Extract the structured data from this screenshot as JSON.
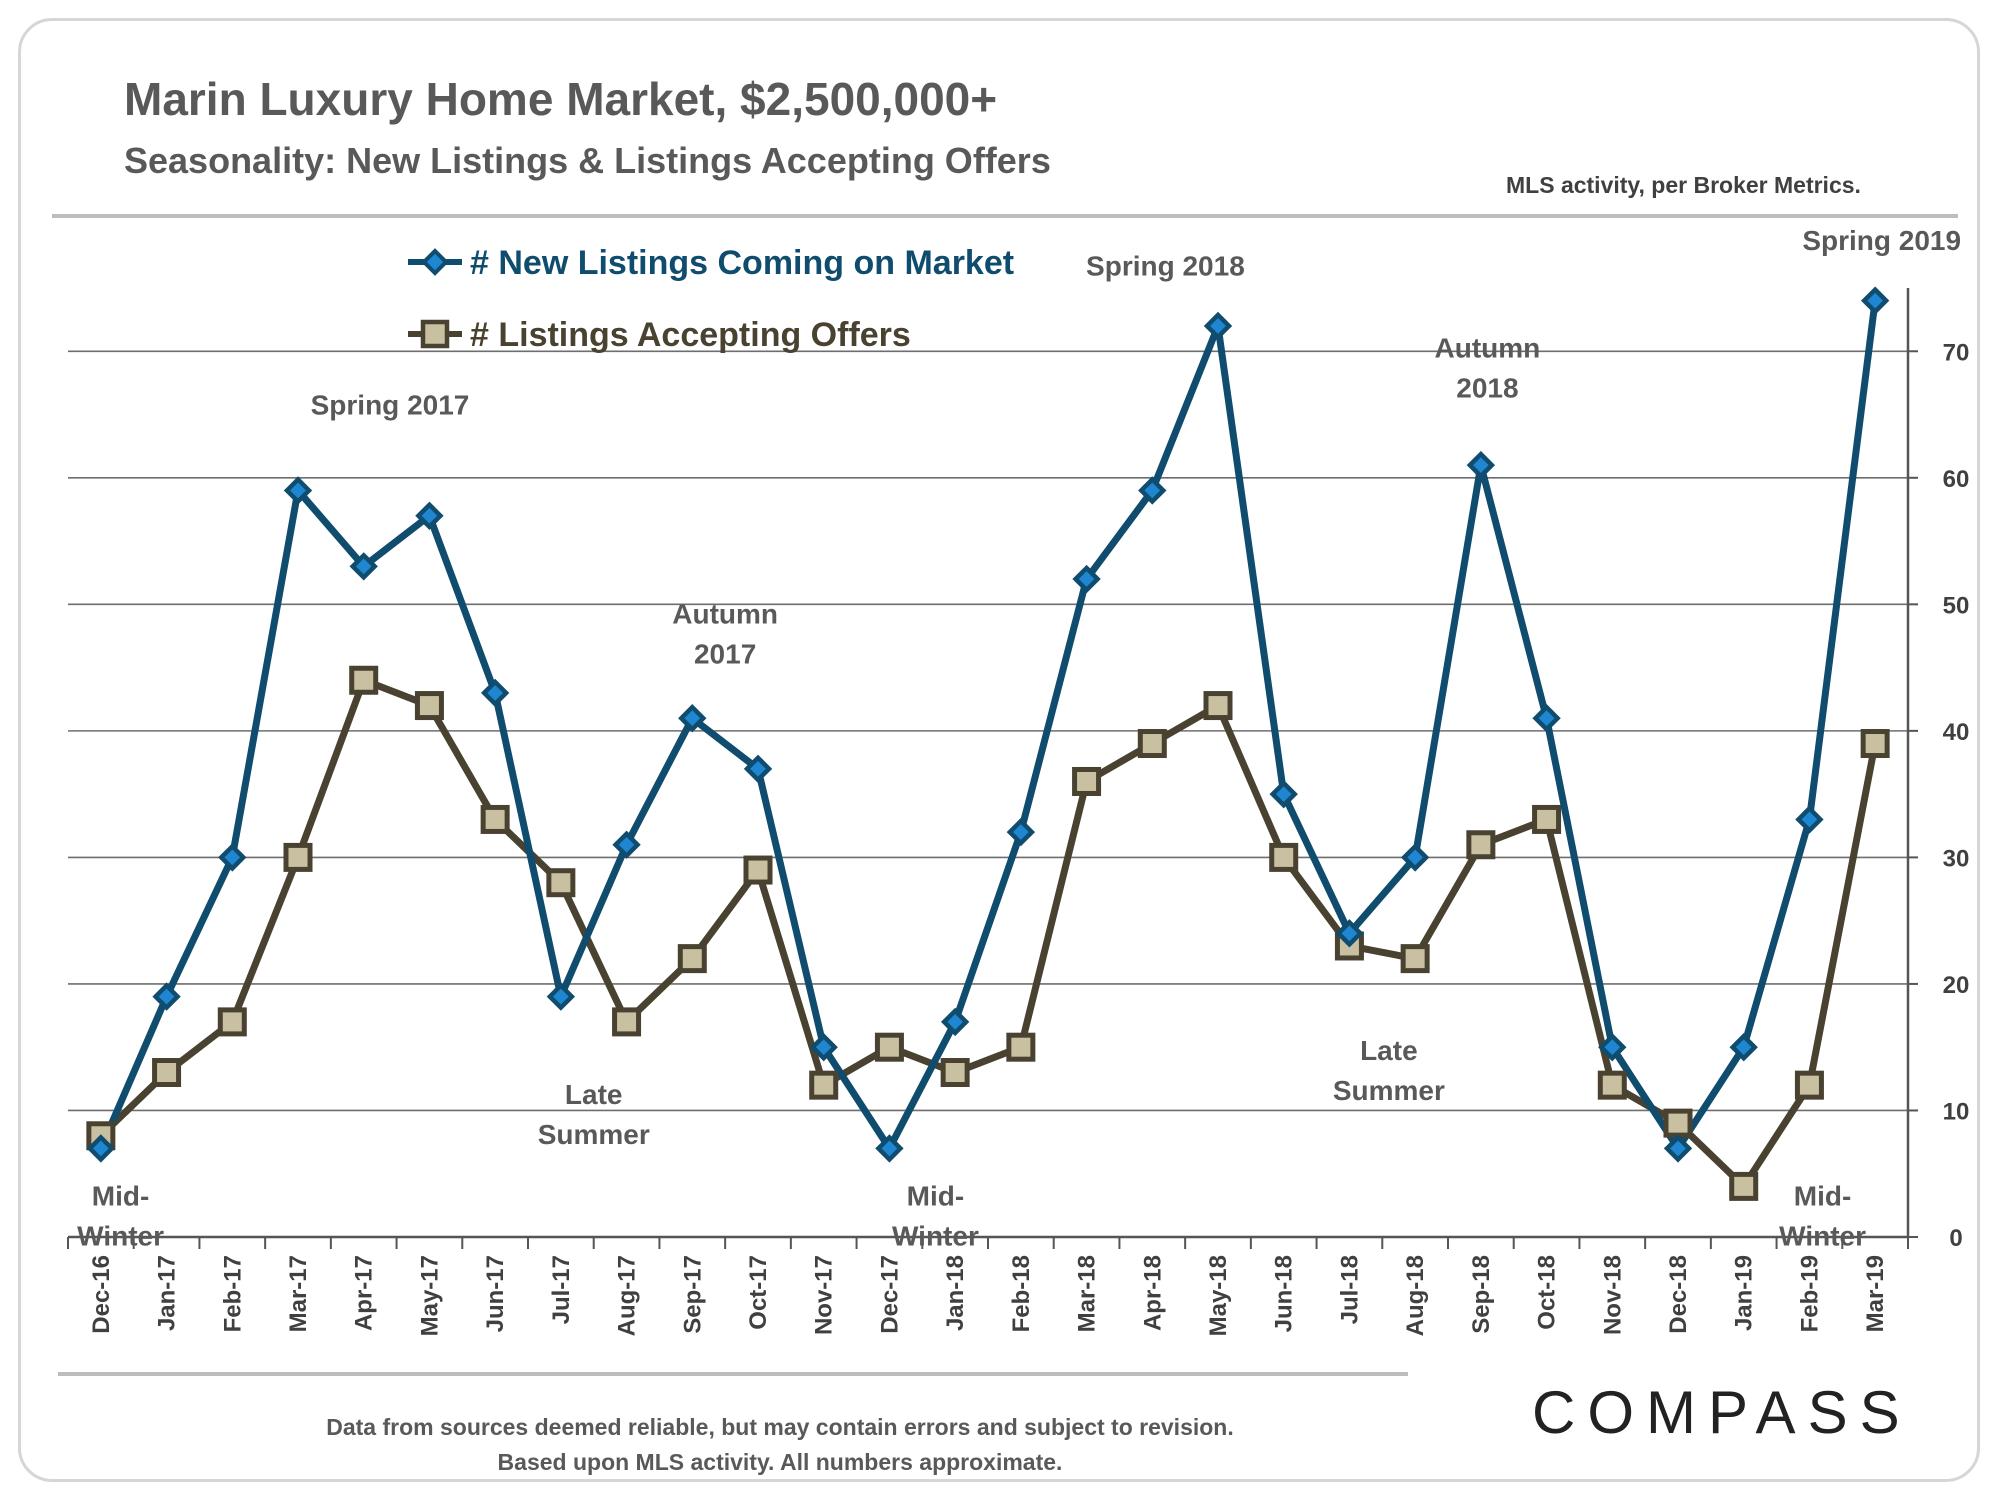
{
  "header": {
    "title": "Marin Luxury Home Market, $2,500,000+",
    "subtitle": "Seasonality: New Listings & Listings Accepting Offers",
    "source_note": "MLS activity, per Broker Metrics."
  },
  "footer": {
    "line1": "Data from sources deemed reliable, but may contain errors and subject to revision.",
    "line2": "Based upon MLS activity. All numbers approximate.",
    "logo_text": "COMPASS"
  },
  "colors": {
    "new_listings": "#0f4c6e",
    "new_listings_marker": "#1f86d1",
    "accepting_offers": "#4a4230",
    "accepting_offers_marker": "#c8c0a0",
    "grid": "#6e6e6e"
  },
  "chart_data": {
    "type": "line",
    "title": "Marin Luxury Home Market, $2,500,000+",
    "xlabel": "",
    "ylabel": "",
    "ylim": [
      0,
      75
    ],
    "yticks": [
      0,
      10,
      20,
      30,
      40,
      50,
      60,
      70
    ],
    "grid": true,
    "y_axis_side": "right",
    "legend_position": "top-left",
    "categories": [
      "Dec-16",
      "Jan-17",
      "Feb-17",
      "Mar-17",
      "Apr-17",
      "May-17",
      "Jun-17",
      "Jul-17",
      "Aug-17",
      "Sep-17",
      "Oct-17",
      "Nov-17",
      "Dec-17",
      "Jan-18",
      "Feb-18",
      "Mar-18",
      "Apr-18",
      "May-18",
      "Jun-18",
      "Jul-18",
      "Aug-18",
      "Sep-18",
      "Oct-18",
      "Nov-18",
      "Dec-18",
      "Jan-19",
      "Feb-19",
      "Mar-19"
    ],
    "series": [
      {
        "name": "# New Listings Coming on Market",
        "marker": "diamond",
        "values": [
          7,
          19,
          30,
          59,
          53,
          57,
          43,
          19,
          31,
          41,
          37,
          15,
          7,
          17,
          32,
          52,
          59,
          72,
          35,
          24,
          30,
          61,
          41,
          15,
          7,
          15,
          33,
          74
        ]
      },
      {
        "name": "# Listings Accepting Offers",
        "marker": "square",
        "values": [
          8,
          13,
          17,
          30,
          44,
          42,
          33,
          28,
          17,
          22,
          29,
          12,
          15,
          13,
          15,
          36,
          39,
          42,
          30,
          23,
          22,
          31,
          33,
          12,
          9,
          4,
          12,
          39
        ]
      }
    ],
    "annotations": [
      {
        "lines": [
          "Mid-",
          "Winter"
        ],
        "cat": 0.3,
        "y": 2.5
      },
      {
        "lines": [
          "Spring 2017"
        ],
        "cat": 4.4,
        "y": 65
      },
      {
        "lines": [
          "Late",
          "Summer"
        ],
        "cat": 7.5,
        "y": 10.5
      },
      {
        "lines": [
          "Autumn",
          "2017"
        ],
        "cat": 9.5,
        "y": 48.5
      },
      {
        "lines": [
          "Mid-",
          "Winter"
        ],
        "cat": 12.7,
        "y": 2.5
      },
      {
        "lines": [
          "Spring 2018"
        ],
        "cat": 16.2,
        "y": 76
      },
      {
        "lines": [
          "Autumn",
          "2018"
        ],
        "cat": 21.1,
        "y": 69.5
      },
      {
        "lines": [
          "Late",
          "Summer"
        ],
        "cat": 19.6,
        "y": 14
      },
      {
        "lines": [
          "Mid-",
          "Winter"
        ],
        "cat": 26.2,
        "y": 2.5
      },
      {
        "lines": [
          "Spring 2019"
        ],
        "cat": 27.1,
        "y": 78
      }
    ]
  }
}
